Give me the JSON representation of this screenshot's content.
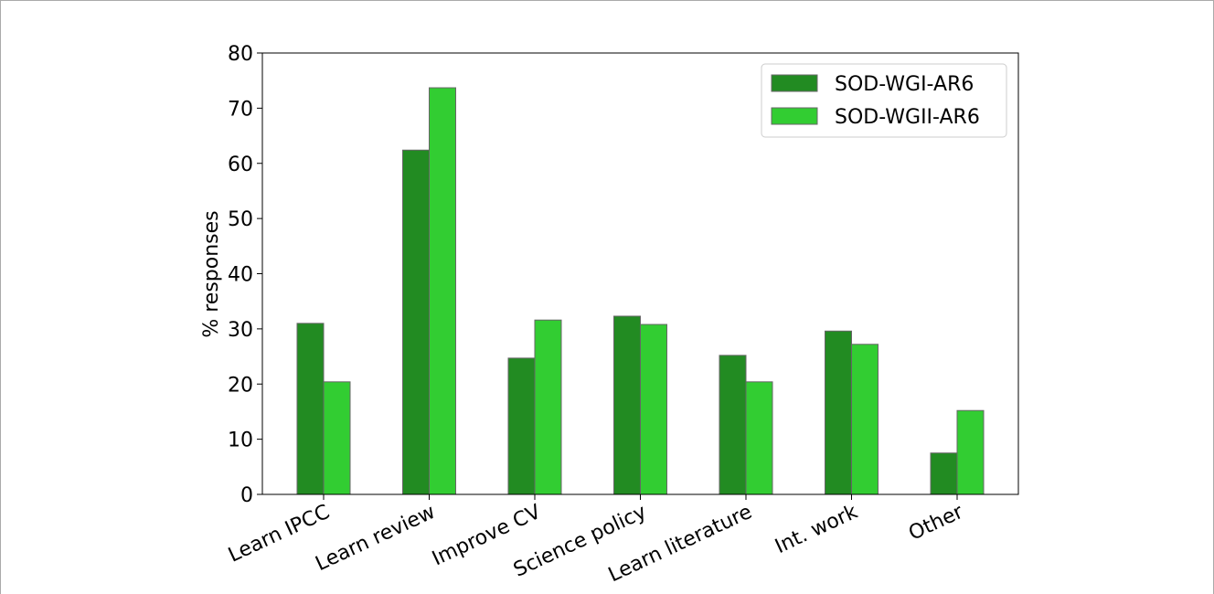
{
  "chart_data": {
    "type": "bar",
    "categories": [
      "Learn IPCC",
      "Learn review",
      "Improve CV",
      "Science policy",
      "Learn literature",
      "Int. work",
      "Other"
    ],
    "series": [
      {
        "name": "SOD-WGI-AR6",
        "color": "#228b22",
        "values": [
          31,
          62.4,
          24.7,
          32.3,
          25.2,
          29.6,
          7.5
        ]
      },
      {
        "name": "SOD-WGII-AR6",
        "color": "#32cd32",
        "values": [
          20.4,
          73.7,
          31.6,
          30.8,
          20.4,
          27.2,
          15.2
        ]
      }
    ],
    "ylabel": "% responses",
    "ylim": [
      0,
      80
    ],
    "yticks": [
      0,
      10,
      20,
      30,
      40,
      50,
      60,
      70,
      80
    ],
    "legend": "upper right"
  }
}
